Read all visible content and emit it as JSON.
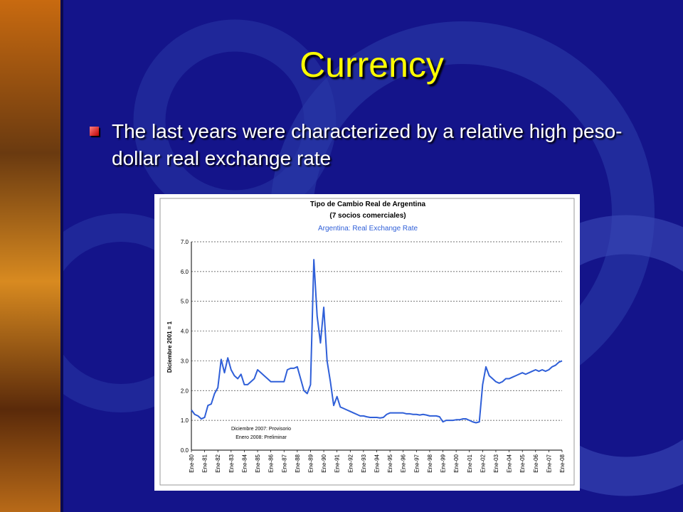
{
  "slide_title": "Currency",
  "bullet": "The last years were characterized by a relative high peso-dollar real exchange rate",
  "chart_data": {
    "type": "line",
    "title": "Tipo de Cambio Real de Argentina",
    "title_line2": "(7 socios comerciales)",
    "subtitle": "Argentina: Real Exchange Rate",
    "y_label": "Diciembre 2001 = 1",
    "annotations": [
      "Diciembre 2007: Provisorio",
      "Enero 2008: Preliminar"
    ],
    "color": "#2f5fd8",
    "grid": true,
    "ylim": [
      0,
      7
    ],
    "yticks": [
      {
        "value": 0,
        "label": "0.0"
      },
      {
        "value": 1,
        "label": "1.0"
      },
      {
        "value": 2,
        "label": "2.0"
      },
      {
        "value": 3,
        "label": "3.0"
      },
      {
        "value": 4,
        "label": "4.0"
      },
      {
        "value": 5,
        "label": "5.0"
      },
      {
        "value": 6,
        "label": "6.0"
      },
      {
        "value": 7,
        "label": "7.0"
      }
    ],
    "categories": [
      "Ene-80",
      null,
      null,
      null,
      "Ene-81",
      null,
      null,
      null,
      "Ene-82",
      null,
      null,
      null,
      "Ene-83",
      null,
      null,
      null,
      "Ene-84",
      null,
      null,
      null,
      "Ene-85",
      null,
      null,
      null,
      "Ene-86",
      null,
      null,
      null,
      "Ene-87",
      null,
      null,
      null,
      "Ene-88",
      null,
      null,
      null,
      "Ene-89",
      null,
      null,
      null,
      "Ene-90",
      null,
      null,
      null,
      "Ene-91",
      null,
      null,
      null,
      "Ene-92",
      null,
      null,
      null,
      "Ene-93",
      null,
      null,
      null,
      "Ene-94",
      null,
      null,
      null,
      "Ene-95",
      null,
      null,
      null,
      "Ene-96",
      null,
      null,
      null,
      "Ene-97",
      null,
      null,
      null,
      "Ene-98",
      null,
      null,
      null,
      "Ene-99",
      null,
      null,
      null,
      "Ene-00",
      null,
      null,
      null,
      "Ene-01",
      null,
      null,
      null,
      "Ene-02",
      null,
      null,
      null,
      "Ene-03",
      null,
      null,
      null,
      "Ene-04",
      null,
      null,
      null,
      "Ene-05",
      null,
      null,
      null,
      "Ene-06",
      null,
      null,
      null,
      "Ene-07",
      null,
      null,
      null,
      "Ene-08"
    ],
    "values": [
      1.35,
      1.2,
      1.15,
      1.05,
      1.1,
      1.5,
      1.55,
      1.9,
      2.1,
      3.05,
      2.6,
      3.1,
      2.7,
      2.5,
      2.4,
      2.55,
      2.2,
      2.2,
      2.3,
      2.4,
      2.7,
      2.6,
      2.5,
      2.4,
      2.3,
      2.3,
      2.3,
      2.3,
      2.3,
      2.7,
      2.75,
      2.75,
      2.8,
      2.4,
      2.0,
      1.9,
      2.2,
      6.4,
      4.5,
      3.6,
      4.8,
      3.0,
      2.3,
      1.5,
      1.8,
      1.45,
      1.4,
      1.35,
      1.3,
      1.25,
      1.2,
      1.15,
      1.15,
      1.12,
      1.1,
      1.1,
      1.1,
      1.08,
      1.1,
      1.2,
      1.25,
      1.25,
      1.25,
      1.25,
      1.25,
      1.22,
      1.22,
      1.2,
      1.2,
      1.18,
      1.2,
      1.18,
      1.15,
      1.15,
      1.15,
      1.12,
      0.95,
      1.0,
      1.0,
      1.0,
      1.02,
      1.02,
      1.05,
      1.05,
      1.0,
      0.95,
      0.92,
      0.95,
      2.2,
      2.8,
      2.5,
      2.4,
      2.3,
      2.25,
      2.3,
      2.4,
      2.4,
      2.45,
      2.5,
      2.55,
      2.6,
      2.55,
      2.6,
      2.65,
      2.7,
      2.65,
      2.7,
      2.65,
      2.7,
      2.8,
      2.85,
      2.95,
      3.0
    ]
  }
}
